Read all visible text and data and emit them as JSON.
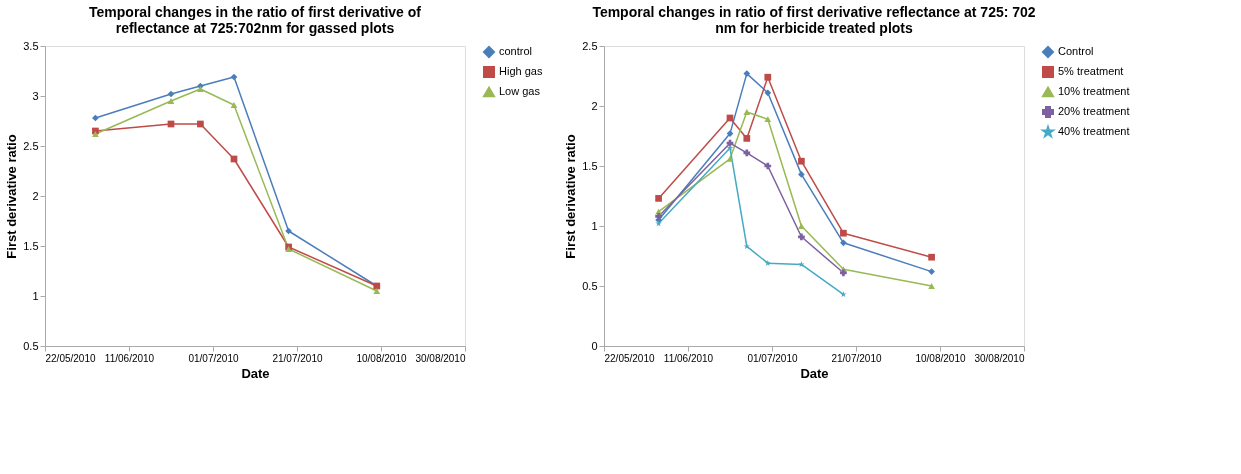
{
  "chart_data": [
    {
      "type": "line",
      "title": "Temporal changes in the ratio of first derivative of\nreflectance at 725:702nm for  gassed plots",
      "xlabel": "Date",
      "ylabel": "First derivative ratio",
      "x": [
        "2010-06-03",
        "2010-06-21",
        "2010-06-28",
        "2010-07-06",
        "2010-07-19",
        "2010-08-09"
      ],
      "series": [
        {
          "name": "control",
          "color": "#4a7ebb",
          "marker": "diamond",
          "values": [
            2.78,
            3.02,
            3.1,
            3.19,
            1.65,
            1.1
          ]
        },
        {
          "name": "High gas",
          "color": "#be4b48",
          "marker": "square",
          "values": [
            2.65,
            2.72,
            2.72,
            2.37,
            1.49,
            1.1
          ]
        },
        {
          "name": "Low gas",
          "color": "#98b954",
          "marker": "triangle",
          "values": [
            2.62,
            2.95,
            3.07,
            2.91,
            1.47,
            1.05
          ]
        }
      ],
      "xlim": [
        "2010-05-22",
        "2010-08-30"
      ],
      "xticks": [
        {
          "value": "2010-05-22",
          "label": "22/05/2010"
        },
        {
          "value": "2010-06-11",
          "label": "11/06/2010"
        },
        {
          "value": "2010-07-01",
          "label": "01/07/2010"
        },
        {
          "value": "2010-07-21",
          "label": "21/07/2010"
        },
        {
          "value": "2010-08-10",
          "label": "10/08/2010"
        },
        {
          "value": "2010-08-30",
          "label": "30/08/2010"
        }
      ],
      "ylim": [
        0.5,
        3.5
      ],
      "yticks": [
        0.5,
        1,
        1.5,
        2,
        2.5,
        3,
        3.5
      ],
      "grid": false,
      "legend": "right",
      "line_style": "solid"
    },
    {
      "type": "line",
      "title": "Temporal changes in ratio of first derivative reflectance at 725: 702\nnm for herbicide treated plots",
      "xlabel": "Date",
      "ylabel": "First derivative ratio",
      "x": [
        "2010-06-04",
        "2010-06-21",
        "2010-06-25",
        "2010-06-30",
        "2010-07-08",
        "2010-07-18",
        "2010-08-08"
      ],
      "series": [
        {
          "name": "Control",
          "color": "#4a7ebb",
          "marker": "diamond",
          "values": [
            1.05,
            1.77,
            2.27,
            2.11,
            1.43,
            0.86,
            0.62
          ]
        },
        {
          "name": "5% treatment",
          "color": "#be4b48",
          "marker": "square",
          "values": [
            1.23,
            1.9,
            1.73,
            2.24,
            1.54,
            0.94,
            0.74
          ]
        },
        {
          "name": "10% treatment",
          "color": "#98b954",
          "marker": "triangle",
          "values": [
            1.12,
            1.56,
            1.95,
            1.89,
            1.0,
            0.64,
            0.5
          ]
        },
        {
          "name": "20% treatment",
          "color": "#7d60a0",
          "marker": "cross",
          "values": [
            1.08,
            1.69,
            1.61,
            1.5,
            0.91,
            0.61,
            null
          ]
        },
        {
          "name": "40% treatment",
          "color": "#46aac5",
          "marker": "star",
          "values": [
            1.02,
            1.65,
            0.83,
            0.69,
            0.68,
            0.43,
            null
          ]
        }
      ],
      "xlim": [
        "2010-05-22",
        "2010-08-30"
      ],
      "xticks": [
        {
          "value": "2010-05-22",
          "label": "22/05/2010"
        },
        {
          "value": "2010-06-11",
          "label": "11/06/2010"
        },
        {
          "value": "2010-07-01",
          "label": "01/07/2010"
        },
        {
          "value": "2010-07-21",
          "label": "21/07/2010"
        },
        {
          "value": "2010-08-10",
          "label": "10/08/2010"
        },
        {
          "value": "2010-08-30",
          "label": "30/08/2010"
        }
      ],
      "ylim": [
        0,
        2.5
      ],
      "yticks": [
        0,
        0.5,
        1,
        1.5,
        2,
        2.5
      ],
      "grid": false,
      "legend": "right",
      "line_style": "solid"
    }
  ]
}
